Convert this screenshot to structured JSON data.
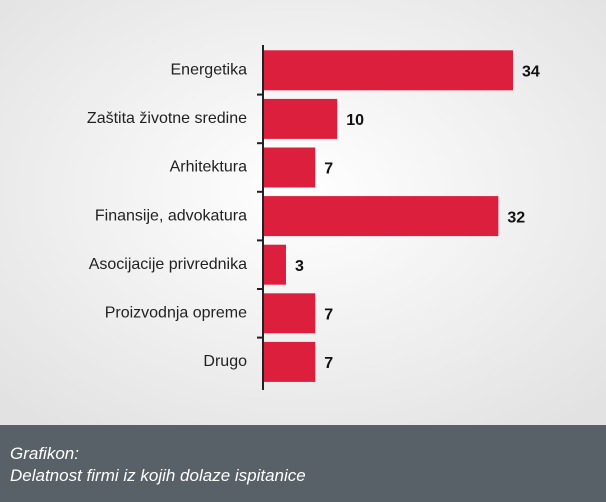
{
  "chart_data": {
    "type": "bar",
    "orientation": "horizontal",
    "categories": [
      "Energetika",
      "Zaštita životne sredine",
      "Arhitektura",
      "Finansije, advokatura",
      "Asocijacije privrednika",
      "Proizvodnja opreme",
      "Drugo"
    ],
    "values": [
      34,
      10,
      7,
      32,
      3,
      7,
      7
    ],
    "color": "#dc1f3c",
    "caption": [
      "Grafikon:",
      "Delatnost firmi iz kojih dolaze ispitanice"
    ]
  }
}
